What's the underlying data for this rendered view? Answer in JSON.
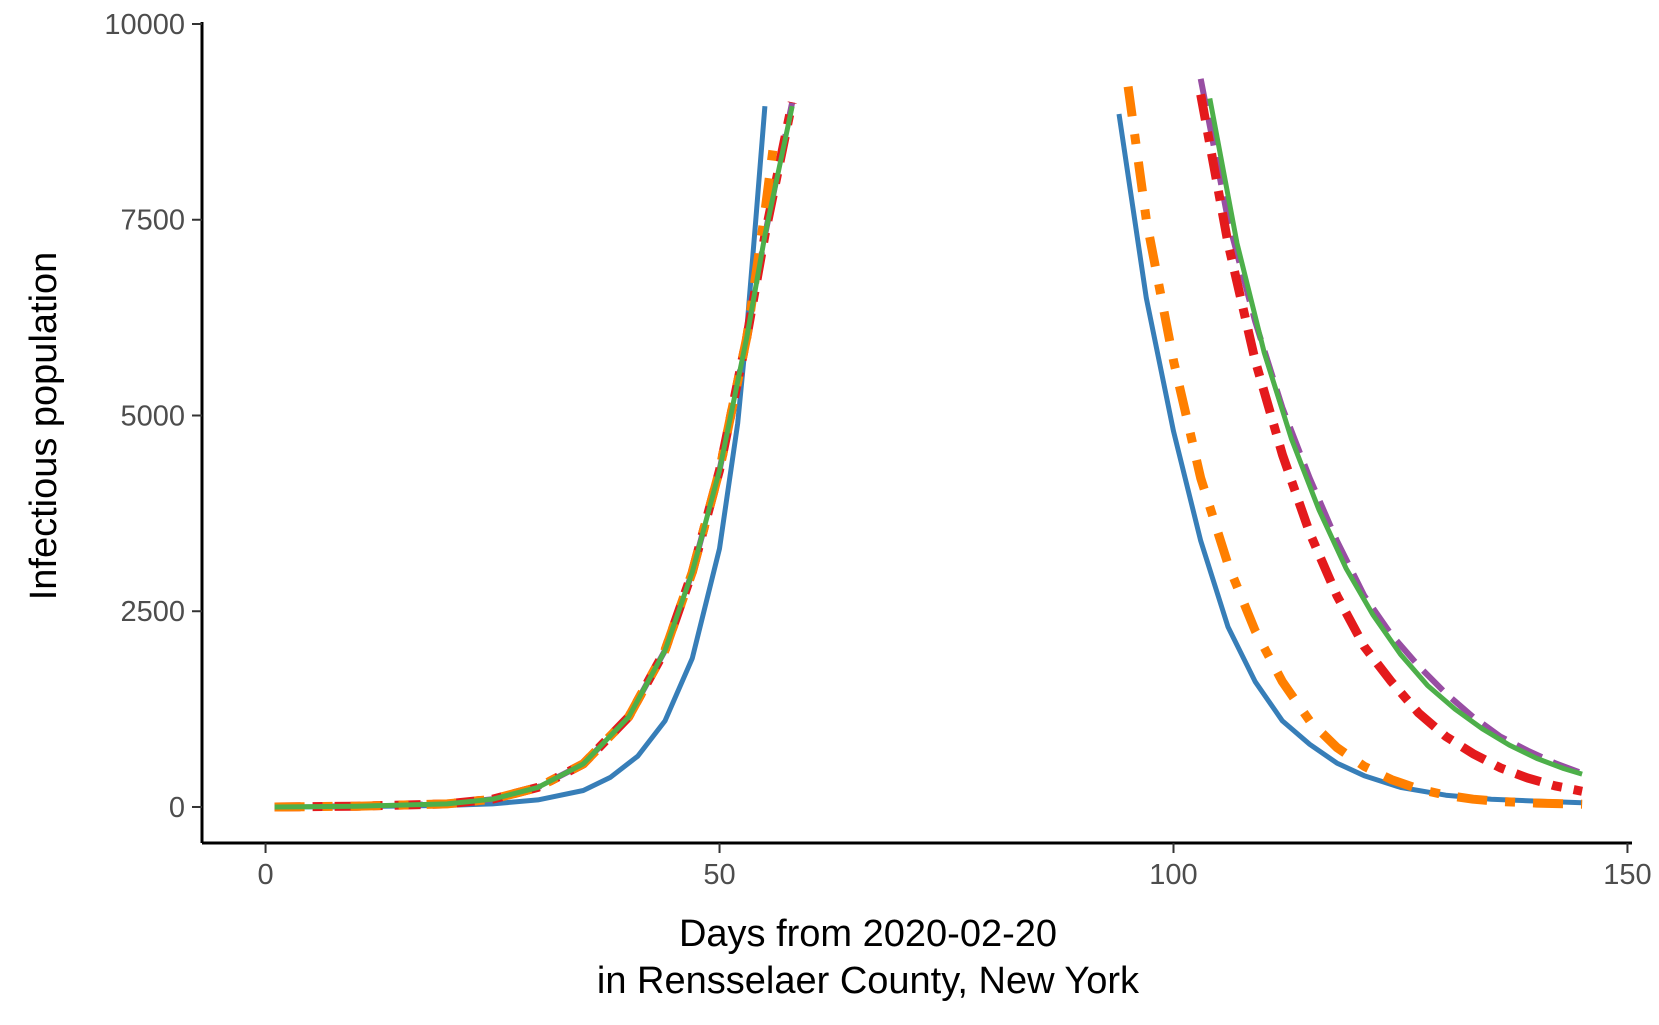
{
  "chart_data": {
    "type": "line",
    "title": "",
    "xlabel_lines": [
      "Days from 2020-02-20",
      "in Rensselaer County, New York"
    ],
    "ylabel": "Infectious population",
    "xlim": [
      -7,
      150.5
    ],
    "ylim": [
      -460,
      10000
    ],
    "x_ticks": [
      0,
      50,
      100,
      150
    ],
    "y_ticks": [
      0,
      2500,
      5000,
      7500,
      10000
    ],
    "grid": false,
    "legend": "none",
    "series": [
      {
        "color": "#377EB8",
        "dash": "solid",
        "segments": [
          [
            [
              1,
              0
            ],
            [
              10,
              5
            ],
            [
              20,
              20
            ],
            [
              25,
              40
            ],
            [
              30,
              90
            ],
            [
              35,
              210
            ],
            [
              38,
              380
            ],
            [
              41,
              650
            ],
            [
              44,
              1100
            ],
            [
              47,
              1900
            ],
            [
              50,
              3300
            ],
            [
              52,
              4900
            ],
            [
              53,
              6100
            ],
            [
              54,
              7500
            ],
            [
              55,
              8950
            ]
          ],
          [
            [
              94,
              8850
            ],
            [
              97,
              6500
            ],
            [
              100,
              4800
            ],
            [
              103,
              3400
            ],
            [
              106,
              2300
            ],
            [
              109,
              1600
            ],
            [
              112,
              1100
            ],
            [
              115,
              800
            ],
            [
              118,
              560
            ],
            [
              121,
              400
            ],
            [
              125,
              250
            ],
            [
              130,
              150
            ],
            [
              135,
              100
            ],
            [
              140,
              75
            ],
            [
              145,
              55
            ]
          ]
        ]
      },
      {
        "color": "#984EA3",
        "dash": "longdash",
        "segments": [
          [
            [
              1,
              0
            ],
            [
              10,
              10
            ],
            [
              20,
              40
            ],
            [
              25,
              100
            ],
            [
              30,
              250
            ],
            [
              35,
              550
            ],
            [
              40,
              1150
            ],
            [
              44,
              2000
            ],
            [
              47,
              3000
            ],
            [
              50,
              4300
            ],
            [
              53,
              6000
            ],
            [
              55,
              7300
            ],
            [
              58,
              9000
            ]
          ],
          [
            [
              103,
              9300
            ],
            [
              106,
              7500
            ],
            [
              109,
              6200
            ],
            [
              112,
              5100
            ],
            [
              115,
              4200
            ],
            [
              118,
              3400
            ],
            [
              121,
              2700
            ],
            [
              124,
              2200
            ],
            [
              127,
              1800
            ],
            [
              130,
              1450
            ],
            [
              133,
              1150
            ],
            [
              136,
              900
            ],
            [
              139,
              720
            ],
            [
              142,
              560
            ],
            [
              145,
              430
            ]
          ]
        ]
      },
      {
        "color": "#E41A1C",
        "dash": "dashdot",
        "segments": [
          [
            [
              1,
              0
            ],
            [
              10,
              10
            ],
            [
              20,
              40
            ],
            [
              25,
              100
            ],
            [
              30,
              250
            ],
            [
              35,
              550
            ],
            [
              40,
              1150
            ],
            [
              44,
              2000
            ],
            [
              47,
              3000
            ],
            [
              50,
              4300
            ],
            [
              53,
              6000
            ],
            [
              55,
              7300
            ],
            [
              58,
              9000
            ]
          ],
          [
            [
              103,
              9100
            ],
            [
              106,
              7200
            ],
            [
              109,
              5700
            ],
            [
              112,
              4500
            ],
            [
              115,
              3500
            ],
            [
              118,
              2700
            ],
            [
              121,
              2050
            ],
            [
              124,
              1600
            ],
            [
              127,
              1200
            ],
            [
              130,
              900
            ],
            [
              133,
              680
            ],
            [
              136,
              500
            ],
            [
              139,
              370
            ],
            [
              142,
              270
            ],
            [
              145,
              200
            ]
          ]
        ]
      },
      {
        "color": "#FF7F00",
        "dash": "dashdot-thick",
        "segments": [
          [
            [
              1,
              0
            ],
            [
              10,
              10
            ],
            [
              20,
              40
            ],
            [
              25,
              100
            ],
            [
              30,
              250
            ],
            [
              35,
              550
            ],
            [
              40,
              1150
            ],
            [
              44,
              2000
            ],
            [
              47,
              3000
            ],
            [
              50,
              4300
            ],
            [
              53,
              6000
            ],
            [
              55,
              7600
            ],
            [
              56,
              8500
            ]
          ],
          [
            [
              95,
              9200
            ],
            [
              97,
              7500
            ],
            [
              100,
              5700
            ],
            [
              103,
              4200
            ],
            [
              106,
              3100
            ],
            [
              109,
              2250
            ],
            [
              112,
              1600
            ],
            [
              115,
              1100
            ],
            [
              118,
              760
            ],
            [
              121,
              520
            ],
            [
              124,
              350
            ],
            [
              127,
              230
            ],
            [
              130,
              150
            ],
            [
              133,
              100
            ],
            [
              136,
              70
            ],
            [
              140,
              50
            ],
            [
              145,
              35
            ]
          ]
        ]
      },
      {
        "color": "#4DAF4A",
        "dash": "solid",
        "segments": [
          [
            [
              1,
              0
            ],
            [
              10,
              10
            ],
            [
              20,
              40
            ],
            [
              25,
              100
            ],
            [
              30,
              250
            ],
            [
              35,
              550
            ],
            [
              40,
              1150
            ],
            [
              44,
              2000
            ],
            [
              47,
              3000
            ],
            [
              50,
              4300
            ],
            [
              53,
              6000
            ],
            [
              55,
              7300
            ],
            [
              58,
              8950
            ]
          ],
          [
            [
              104,
              9050
            ],
            [
              107,
              7200
            ],
            [
              110,
              5800
            ],
            [
              113,
              4700
            ],
            [
              116,
              3800
            ],
            [
              119,
              3050
            ],
            [
              122,
              2450
            ],
            [
              125,
              1950
            ],
            [
              128,
              1550
            ],
            [
              131,
              1250
            ],
            [
              134,
              1000
            ],
            [
              137,
              790
            ],
            [
              140,
              620
            ],
            [
              143,
              490
            ],
            [
              145,
              420
            ]
          ]
        ]
      }
    ]
  }
}
